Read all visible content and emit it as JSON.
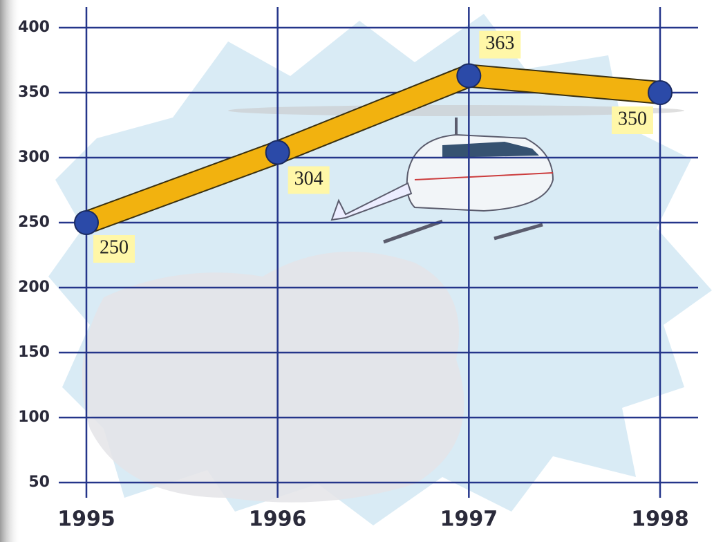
{
  "chart_data": {
    "type": "line",
    "categories": [
      "1995",
      "1996",
      "1997",
      "1998"
    ],
    "values": [
      250,
      304,
      363,
      350
    ],
    "color": "#f2b20f",
    "marker_color": "#2b4aa8",
    "ylim": [
      50,
      400
    ],
    "yticks": [
      50,
      100,
      150,
      200,
      250,
      300,
      350,
      400
    ],
    "grid": true
  }
}
